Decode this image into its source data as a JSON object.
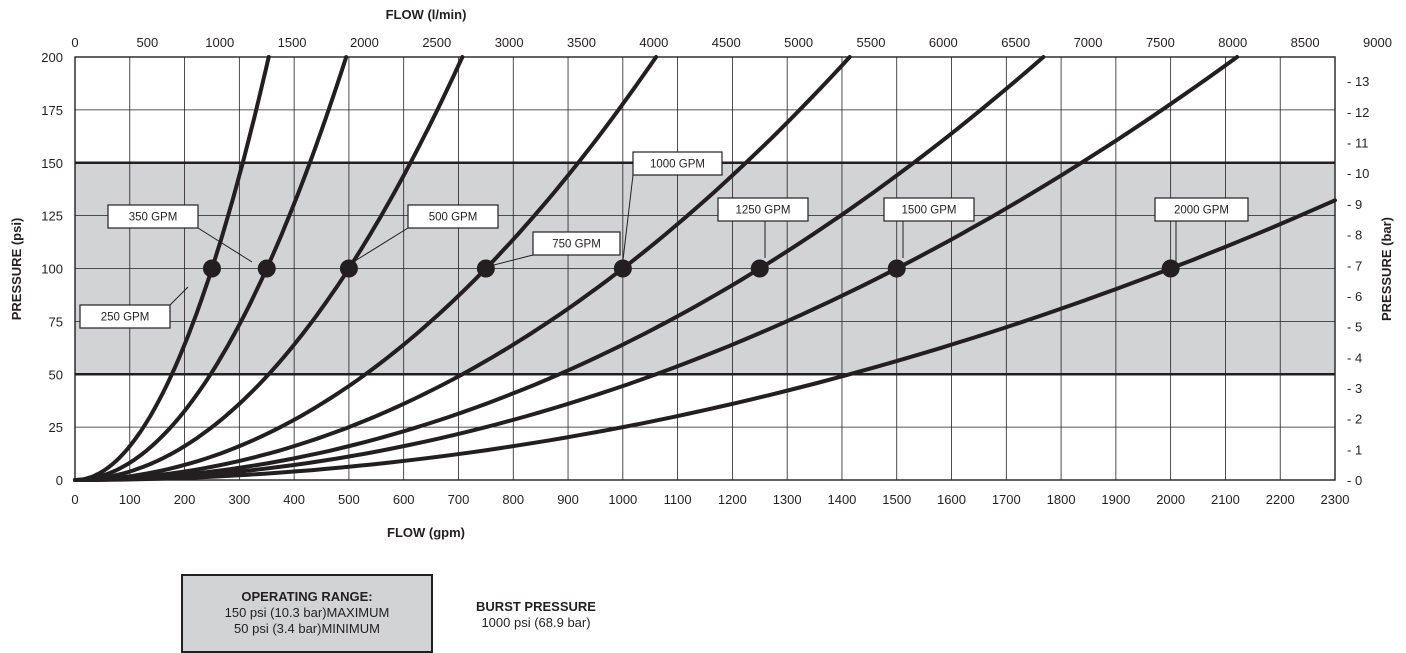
{
  "chart_data": {
    "type": "line",
    "title": "",
    "xlabel": "FLOW (gpm)",
    "x2label": "FLOW (l/min)",
    "ylabel": "PRESSURE (psi)",
    "y2label": "PRESSURE (bar)",
    "xlim": [
      0,
      2300
    ],
    "ylim": [
      0,
      200
    ],
    "x_ticks": [
      0,
      100,
      200,
      300,
      400,
      500,
      600,
      700,
      800,
      900,
      1000,
      1100,
      1200,
      1300,
      1400,
      1500,
      1600,
      1700,
      1800,
      1900,
      2000,
      2100,
      2200,
      2300
    ],
    "y_ticks": [
      0,
      25,
      50,
      75,
      100,
      125,
      150,
      175,
      200
    ],
    "x2_ticks": [
      0,
      500,
      1000,
      1500,
      2000,
      2500,
      3000,
      3500,
      4000,
      4500,
      5000,
      5500,
      6000,
      6500,
      7000,
      7500,
      8000,
      8500,
      9000
    ],
    "y2_ticks": [
      0,
      1,
      2,
      3,
      4,
      5,
      6,
      7,
      8,
      9,
      10,
      11,
      12,
      13
    ],
    "grid": true,
    "operating_band": {
      "min": 50,
      "max": 150,
      "color": "#d1d3d4"
    },
    "series": [
      {
        "name": "250 GPM",
        "rated_gpm": 250,
        "rated_psi": 100
      },
      {
        "name": "350 GPM",
        "rated_gpm": 350,
        "rated_psi": 100
      },
      {
        "name": "500 GPM",
        "rated_gpm": 500,
        "rated_psi": 100
      },
      {
        "name": "750 GPM",
        "rated_gpm": 750,
        "rated_psi": 100
      },
      {
        "name": "1000 GPM",
        "rated_gpm": 1000,
        "rated_psi": 100
      },
      {
        "name": "1250 GPM",
        "rated_gpm": 1250,
        "rated_psi": 100
      },
      {
        "name": "1500 GPM",
        "rated_gpm": 1500,
        "rated_psi": 100
      },
      {
        "name": "2000 GPM",
        "rated_gpm": 2000,
        "rated_psi": 100
      }
    ],
    "colors": {
      "curve": "#231f20",
      "band": "#d1d3d4",
      "grid": "#231f20"
    }
  },
  "operating_range": {
    "title": "OPERATING RANGE:",
    "max_line": "150 psi (10.3 bar)MAXIMUM",
    "min_line": "50 psi (3.4 bar)MINIMUM"
  },
  "burst_pressure": {
    "title": "BURST PRESSURE",
    "value": "1000 psi (68.9 bar)"
  }
}
